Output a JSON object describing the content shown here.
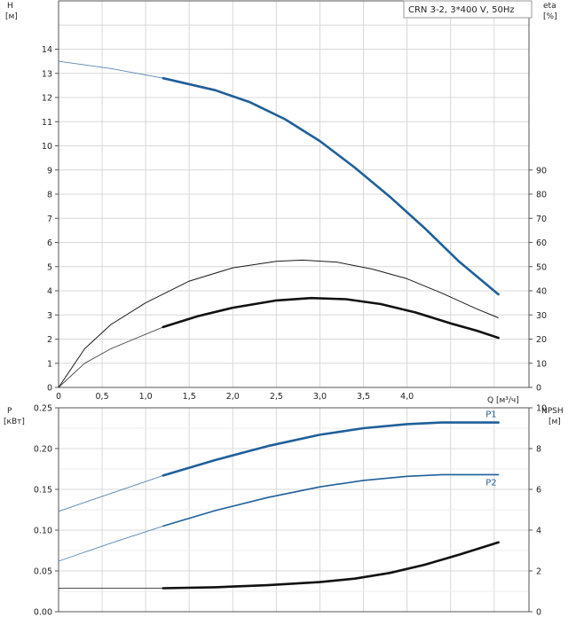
{
  "chart_data": [
    {
      "id": "head-efficiency",
      "type": "line",
      "title": "CRN 3-2, 3*400 V, 50Hz",
      "xlabel": "Q [м³/ч]",
      "xlim": [
        0,
        5.4
      ],
      "x_ticks": [
        0,
        0.5,
        1.0,
        1.5,
        2.0,
        2.5,
        3.0,
        3.5,
        4.0
      ],
      "x_tick_labels": [
        "0",
        "0,5",
        "1,0",
        "1,5",
        "2,0",
        "2,5",
        "3,0",
        "3,5",
        "4,0"
      ],
      "y_left": {
        "label": "H",
        "unit": "[м]",
        "ylim": [
          0,
          16
        ],
        "ticks": [
          0,
          1,
          2,
          3,
          4,
          5,
          6,
          7,
          8,
          9,
          10,
          11,
          12,
          13,
          14
        ],
        "tick_labels": [
          "0",
          "1",
          "2",
          "3",
          "4",
          "5",
          "6",
          "7",
          "8",
          "9",
          "10",
          "11",
          "12",
          "13",
          "14"
        ]
      },
      "y_right": {
        "label": "eta",
        "unit": "[%]",
        "ylim": [
          0,
          160
        ],
        "ticks": [
          0,
          10,
          20,
          30,
          40,
          50,
          60,
          70,
          80,
          90
        ],
        "tick_labels": [
          "0",
          "10",
          "20",
          "30",
          "40",
          "50",
          "60",
          "70",
          "80",
          "90"
        ]
      },
      "grid": true,
      "series": [
        {
          "axis": "left",
          "color": "#1f5f99",
          "width_class": "thick",
          "x": [
            0,
            0.6,
            1.2,
            1.8,
            2.2,
            2.6,
            3.0,
            3.4,
            3.8,
            4.2,
            4.6,
            5.05
          ],
          "y": [
            13.5,
            13.2,
            12.8,
            12.3,
            11.8,
            11.1,
            10.2,
            9.1,
            7.9,
            6.6,
            5.2,
            3.85
          ],
          "solid_from": 1.2
        },
        {
          "axis": "right",
          "color": "#1a1a1a",
          "width_class": "thin",
          "x": [
            0,
            0.3,
            0.6,
            1.0,
            1.5,
            2.0,
            2.5,
            2.8,
            3.2,
            3.6,
            4.0,
            4.4,
            4.8,
            5.05
          ],
          "y": [
            0,
            16,
            26,
            35,
            44,
            49.5,
            52.2,
            52.7,
            51.8,
            49.0,
            45.0,
            39.0,
            32.5,
            28.8
          ]
        },
        {
          "axis": "right",
          "color": "#111111",
          "width_class": "thick",
          "x": [
            0,
            0.3,
            0.6,
            1.0,
            1.2,
            1.6,
            2.0,
            2.5,
            2.9,
            3.3,
            3.7,
            4.1,
            4.5,
            4.8,
            5.05
          ],
          "y": [
            0,
            10,
            16,
            22,
            25,
            29.5,
            33.0,
            36.0,
            37.0,
            36.5,
            34.5,
            31.0,
            26.5,
            23.5,
            20.5
          ],
          "solid_from": 1.2
        }
      ]
    },
    {
      "id": "power-npsh",
      "type": "line",
      "xlim": [
        0,
        5.4
      ],
      "x_ticks": [
        0,
        0.5,
        1.0,
        1.5,
        2.0,
        2.5,
        3.0,
        3.5,
        4.0
      ],
      "y_left": {
        "label": "P",
        "unit": "[кВт]",
        "ylim": [
          0,
          0.25
        ],
        "ticks": [
          0,
          0.05,
          0.1,
          0.15,
          0.2,
          0.25
        ],
        "tick_labels": [
          "0.00",
          "0.05",
          "0.10",
          "0.15",
          "0.20",
          "0.25"
        ]
      },
      "y_right": {
        "label": "NPSH",
        "unit": "[м]",
        "ylim": [
          0,
          10
        ],
        "ticks": [
          0,
          2,
          4,
          6,
          8,
          10
        ],
        "tick_labels": [
          "0",
          "2",
          "4",
          "6",
          "8",
          "10"
        ]
      },
      "grid": true,
      "series": [
        {
          "name": "P1",
          "axis": "left",
          "color": "#1f5f99",
          "width_class": "thick",
          "x": [
            0,
            0.6,
            1.2,
            1.8,
            2.4,
            3.0,
            3.5,
            4.0,
            4.4,
            4.8,
            5.05
          ],
          "y": [
            0.123,
            0.145,
            0.167,
            0.186,
            0.203,
            0.217,
            0.225,
            0.23,
            0.232,
            0.232,
            0.232
          ],
          "solid_from": 1.2
        },
        {
          "name": "P2",
          "axis": "left",
          "color": "#1f5f99",
          "width_class": "medium",
          "x": [
            0,
            0.6,
            1.2,
            1.8,
            2.4,
            3.0,
            3.5,
            4.0,
            4.4,
            4.8,
            5.05
          ],
          "y": [
            0.062,
            0.084,
            0.105,
            0.124,
            0.14,
            0.153,
            0.161,
            0.166,
            0.168,
            0.168,
            0.168
          ],
          "solid_from": 1.2
        },
        {
          "axis": "right",
          "color": "#111111",
          "width_class": "thick",
          "x": [
            0,
            0.5,
            1.2,
            1.8,
            2.4,
            3.0,
            3.4,
            3.8,
            4.2,
            4.6,
            5.05
          ],
          "y": [
            1.15,
            1.15,
            1.15,
            1.2,
            1.3,
            1.45,
            1.62,
            1.9,
            2.3,
            2.8,
            3.4
          ],
          "solid_from": 1.2
        }
      ]
    }
  ]
}
